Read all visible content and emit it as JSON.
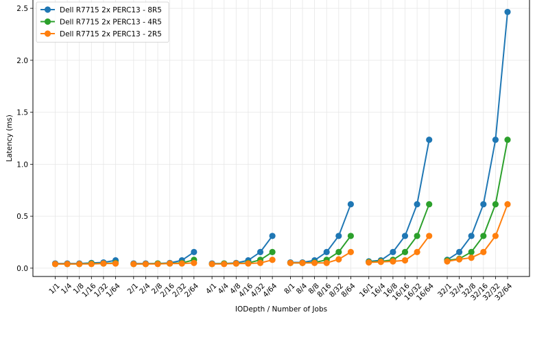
{
  "chart_data": {
    "type": "line",
    "xlabel": "IODepth / Number of Jobs",
    "ylabel": "Latency (ms)",
    "ylim": [
      -0.08,
      2.58
    ],
    "yticks": [
      0.0,
      0.5,
      1.0,
      1.5,
      2.0,
      2.5
    ],
    "ytick_labels": [
      "0.0",
      "0.5",
      "1.0",
      "1.5",
      "2.0",
      "2.5"
    ],
    "grid": true,
    "legend_position": "top-left",
    "groups": [
      {
        "iodepth": "1",
        "categories": [
          "1/1",
          "1/4",
          "1/8",
          "1/16",
          "1/32",
          "1/64"
        ]
      },
      {
        "iodepth": "2",
        "categories": [
          "2/1",
          "2/4",
          "2/8",
          "2/16",
          "2/32",
          "2/64"
        ]
      },
      {
        "iodepth": "4",
        "categories": [
          "4/1",
          "4/4",
          "4/8",
          "4/16",
          "4/32",
          "4/64"
        ]
      },
      {
        "iodepth": "8",
        "categories": [
          "8/1",
          "8/4",
          "8/8",
          "8/16",
          "8/32",
          "8/64"
        ]
      },
      {
        "iodepth": "16",
        "categories": [
          "16/1",
          "16/4",
          "16/8",
          "16/16",
          "16/32",
          "16/64"
        ]
      },
      {
        "iodepth": "32",
        "categories": [
          "32/1",
          "32/4",
          "32/8",
          "32/16",
          "32/32",
          "32/64"
        ]
      }
    ],
    "series": [
      {
        "name": "Dell R7715 2x PERC13 - 8R5",
        "color": "#1f77b4",
        "values": [
          [
            0.045,
            0.045,
            0.045,
            0.05,
            0.055,
            0.075
          ],
          [
            0.045,
            0.045,
            0.045,
            0.05,
            0.075,
            0.155
          ],
          [
            0.045,
            0.045,
            0.05,
            0.075,
            0.155,
            0.31
          ],
          [
            0.055,
            0.055,
            0.075,
            0.155,
            0.31,
            0.615
          ],
          [
            0.065,
            0.075,
            0.155,
            0.31,
            0.615,
            1.235
          ],
          [
            0.08,
            0.155,
            0.31,
            0.615,
            1.235,
            2.465
          ]
        ]
      },
      {
        "name": "Dell R7715 2x PERC13 - 4R5",
        "color": "#2ca02c",
        "values": [
          [
            0.04,
            0.04,
            0.04,
            0.045,
            0.045,
            0.05
          ],
          [
            0.04,
            0.04,
            0.045,
            0.045,
            0.05,
            0.08
          ],
          [
            0.04,
            0.045,
            0.045,
            0.05,
            0.08,
            0.155
          ],
          [
            0.05,
            0.05,
            0.055,
            0.08,
            0.155,
            0.31
          ],
          [
            0.06,
            0.065,
            0.08,
            0.155,
            0.31,
            0.615
          ],
          [
            0.075,
            0.09,
            0.155,
            0.31,
            0.615,
            1.235
          ]
        ]
      },
      {
        "name": "Dell R7715 2x PERC13 - 2R5",
        "color": "#ff7f0e",
        "values": [
          [
            0.04,
            0.04,
            0.04,
            0.04,
            0.045,
            0.045
          ],
          [
            0.04,
            0.04,
            0.04,
            0.045,
            0.045,
            0.05
          ],
          [
            0.04,
            0.04,
            0.045,
            0.045,
            0.05,
            0.08
          ],
          [
            0.05,
            0.05,
            0.05,
            0.05,
            0.085,
            0.155
          ],
          [
            0.055,
            0.06,
            0.065,
            0.075,
            0.155,
            0.31
          ],
          [
            0.065,
            0.085,
            0.1,
            0.155,
            0.31,
            0.615
          ]
        ]
      }
    ]
  }
}
